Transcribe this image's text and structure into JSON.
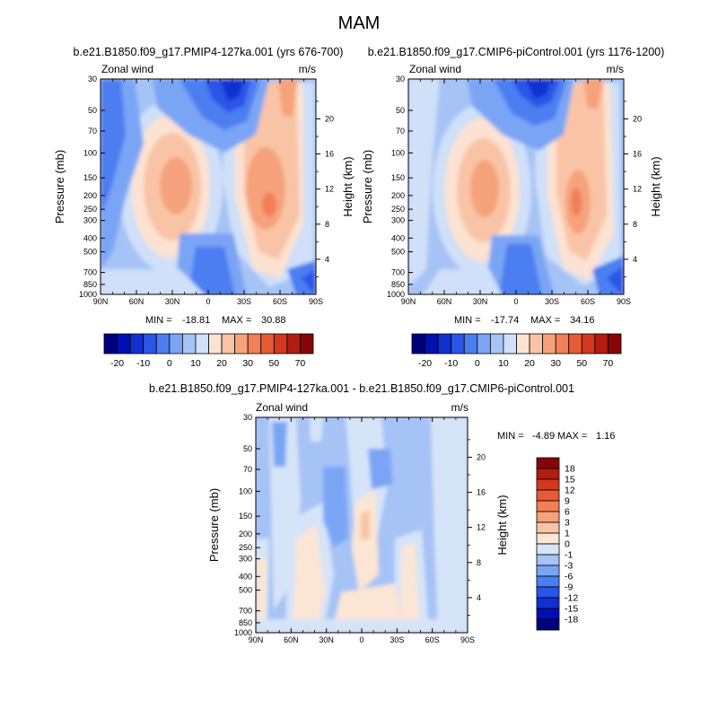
{
  "page": {
    "title": "MAM"
  },
  "colors": {
    "cb_levels": [
      "#00007f",
      "#0010b0",
      "#1030d0",
      "#2a55e6",
      "#4b7ef0",
      "#7aa5f5",
      "#a6c3f6",
      "#cfe0f8",
      "#fbe2d2",
      "#f9c4a6",
      "#f6a37c",
      "#f27f57",
      "#e85a35",
      "#d3381e",
      "#b31c10",
      "#870505"
    ],
    "diff_levels": [
      "#00007f",
      "#0010b0",
      "#1030d0",
      "#2a55e6",
      "#4b7ef0",
      "#7aa5f5",
      "#a6c3f6",
      "#d6e4f8",
      "#fbe5d4",
      "#f9c4a6",
      "#f6a37c",
      "#f27f57",
      "#e85a35",
      "#d3381e",
      "#b31c10",
      "#870505"
    ]
  },
  "chart_data": [
    {
      "type": "heatmap",
      "panel": "left",
      "title": "b.e21.B1850.f09_g17.PMIP4-127ka.001 (yrs 676-700)",
      "left_label": "Zonal wind",
      "right_label": "m/s",
      "xlabel": "",
      "ylabel": "Pressure (mb)",
      "y2label": "Height (km)",
      "x_ticks": [
        "90N",
        "60N",
        "30N",
        "0",
        "30S",
        "60S",
        "90S"
      ],
      "y_ticks": [
        "30",
        "50",
        "70",
        "100",
        "150",
        "200",
        "250",
        "300",
        "400",
        "500",
        "700",
        "850",
        "1000"
      ],
      "y2_ticks": [
        "20",
        "16",
        "12",
        "8",
        "4"
      ],
      "stats": {
        "min_label": "MIN =",
        "min": "-18.81",
        "max_label": "MAX =",
        "max": "30.88"
      },
      "jets": [
        {
          "lat": -28,
          "p": 200,
          "speed": 28
        },
        {
          "lat": 52,
          "p": 220,
          "speed": 30.88
        }
      ],
      "colorbar": {
        "labels": [
          "-20",
          "-10",
          "0",
          "10",
          "20",
          "30",
          "50",
          "70"
        ]
      }
    },
    {
      "type": "heatmap",
      "panel": "right",
      "title": "b.e21.B1850.f09_g17.CMIP6-piControl.001 (yrs 1176-1200)",
      "left_label": "Zonal wind",
      "right_label": "m/s",
      "xlabel": "",
      "ylabel": "Pressure (mb)",
      "y2label": "Height (km)",
      "x_ticks": [
        "90N",
        "60N",
        "30N",
        "0",
        "30S",
        "60S",
        "90S"
      ],
      "y_ticks": [
        "30",
        "50",
        "70",
        "100",
        "150",
        "200",
        "250",
        "300",
        "400",
        "500",
        "700",
        "850",
        "1000"
      ],
      "y2_ticks": [
        "20",
        "16",
        "12",
        "8",
        "4"
      ],
      "stats": {
        "min_label": "MIN =",
        "min": "-17.74",
        "max_label": "MAX =",
        "max": "34.16"
      },
      "jets": [
        {
          "lat": -30,
          "p": 200,
          "speed": 32
        },
        {
          "lat": 48,
          "p": 220,
          "speed": 34.16
        }
      ],
      "colorbar": {
        "labels": [
          "-20",
          "-10",
          "0",
          "10",
          "20",
          "30",
          "50",
          "70"
        ]
      }
    },
    {
      "type": "heatmap",
      "panel": "difference",
      "title": "b.e21.B1850.f09_g17.PMIP4-127ka.001 - b.e21.B1850.f09_g17.CMIP6-piControl.001",
      "left_label": "Zonal wind",
      "right_label": "m/s",
      "xlabel": "",
      "ylabel": "Pressure (mb)",
      "y2label": "Height (km)",
      "x_ticks": [
        "90N",
        "60N",
        "30N",
        "0",
        "30S",
        "60S",
        "90S"
      ],
      "y_ticks": [
        "30",
        "50",
        "70",
        "100",
        "150",
        "200",
        "250",
        "300",
        "400",
        "500",
        "700",
        "850",
        "1000"
      ],
      "y2_ticks": [
        "20",
        "16",
        "12",
        "8",
        "4"
      ],
      "stats": {
        "min_label": "MIN =",
        "min": "-4.89",
        "max_label": "MAX =",
        "max": "1.16"
      },
      "colorbar": {
        "labels": [
          "18",
          "15",
          "12",
          "9",
          "6",
          "3",
          "1",
          "0",
          "-1",
          "-3",
          "-6",
          "-9",
          "-12",
          "-15",
          "-18"
        ]
      }
    }
  ]
}
